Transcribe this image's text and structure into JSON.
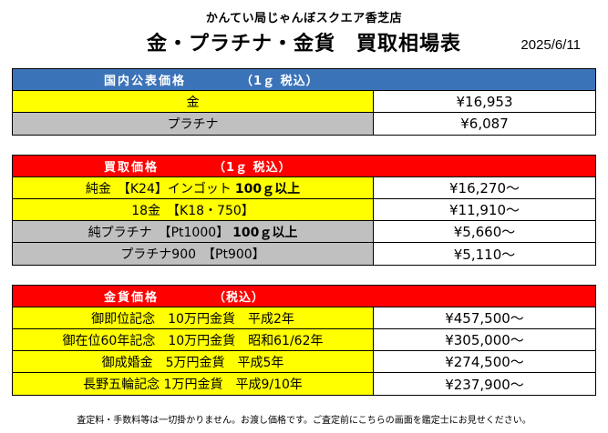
{
  "store_name": "かんてい局じゃんぼスクエア香芝店",
  "title": "金・プラチナ・金貨　買取相場表",
  "date": "2025/6/11",
  "colors": {
    "public_header": "#3b73b9",
    "buy_header": "#ff0000",
    "coin_header": "#ff0000",
    "yellow": "#ffff00",
    "gray": "#c0c0c0"
  },
  "public_prices": {
    "header": {
      "label": "国内公表価格",
      "tax": "（1ｇ 税込）"
    },
    "rows": [
      {
        "name": "金",
        "price": "¥16,953",
        "color": "yellow"
      },
      {
        "name": "プラチナ",
        "price": "¥6,087",
        "color": "gray"
      }
    ]
  },
  "buy_prices": {
    "header": {
      "label": "買取価格",
      "tax": "（1ｇ 税込）"
    },
    "rows": [
      {
        "name": "純金　【K24】インゴット",
        "bold": "100ｇ以上",
        "price": "¥16,270～",
        "color": "yellow"
      },
      {
        "name": "18金　【K18・750】",
        "bold": "",
        "price": "¥11,910～",
        "color": "yellow"
      },
      {
        "name": "純プラチナ　【Pt1000】",
        "bold": "100ｇ以上",
        "price": "¥5,660～",
        "color": "gray"
      },
      {
        "name": "プラチナ900　【Pt900】",
        "bold": "",
        "price": "¥5,110～",
        "color": "gray"
      }
    ]
  },
  "coin_prices": {
    "header": {
      "label": "金貨価格",
      "tax": "（税込）"
    },
    "rows": [
      {
        "name": "御即位記念　10万円金貨　平成2年",
        "price": "¥457,500～",
        "color": "yellow"
      },
      {
        "name": "御在位60年記念　10万円金貨　昭和61/62年",
        "price": "¥305,000～",
        "color": "yellow"
      },
      {
        "name": "御成婚金　5万円金貨　平成5年",
        "price": "¥274,500～",
        "color": "yellow"
      },
      {
        "name": "長野五輪記念 1万円金貨　平成9/10年",
        "price": "¥237,900～",
        "color": "yellow"
      }
    ]
  },
  "footer": "査定料・手数料等は一切掛かりません。お渡し価格です。ご査定前にこちらの画面を鑑定士にお見せください。"
}
